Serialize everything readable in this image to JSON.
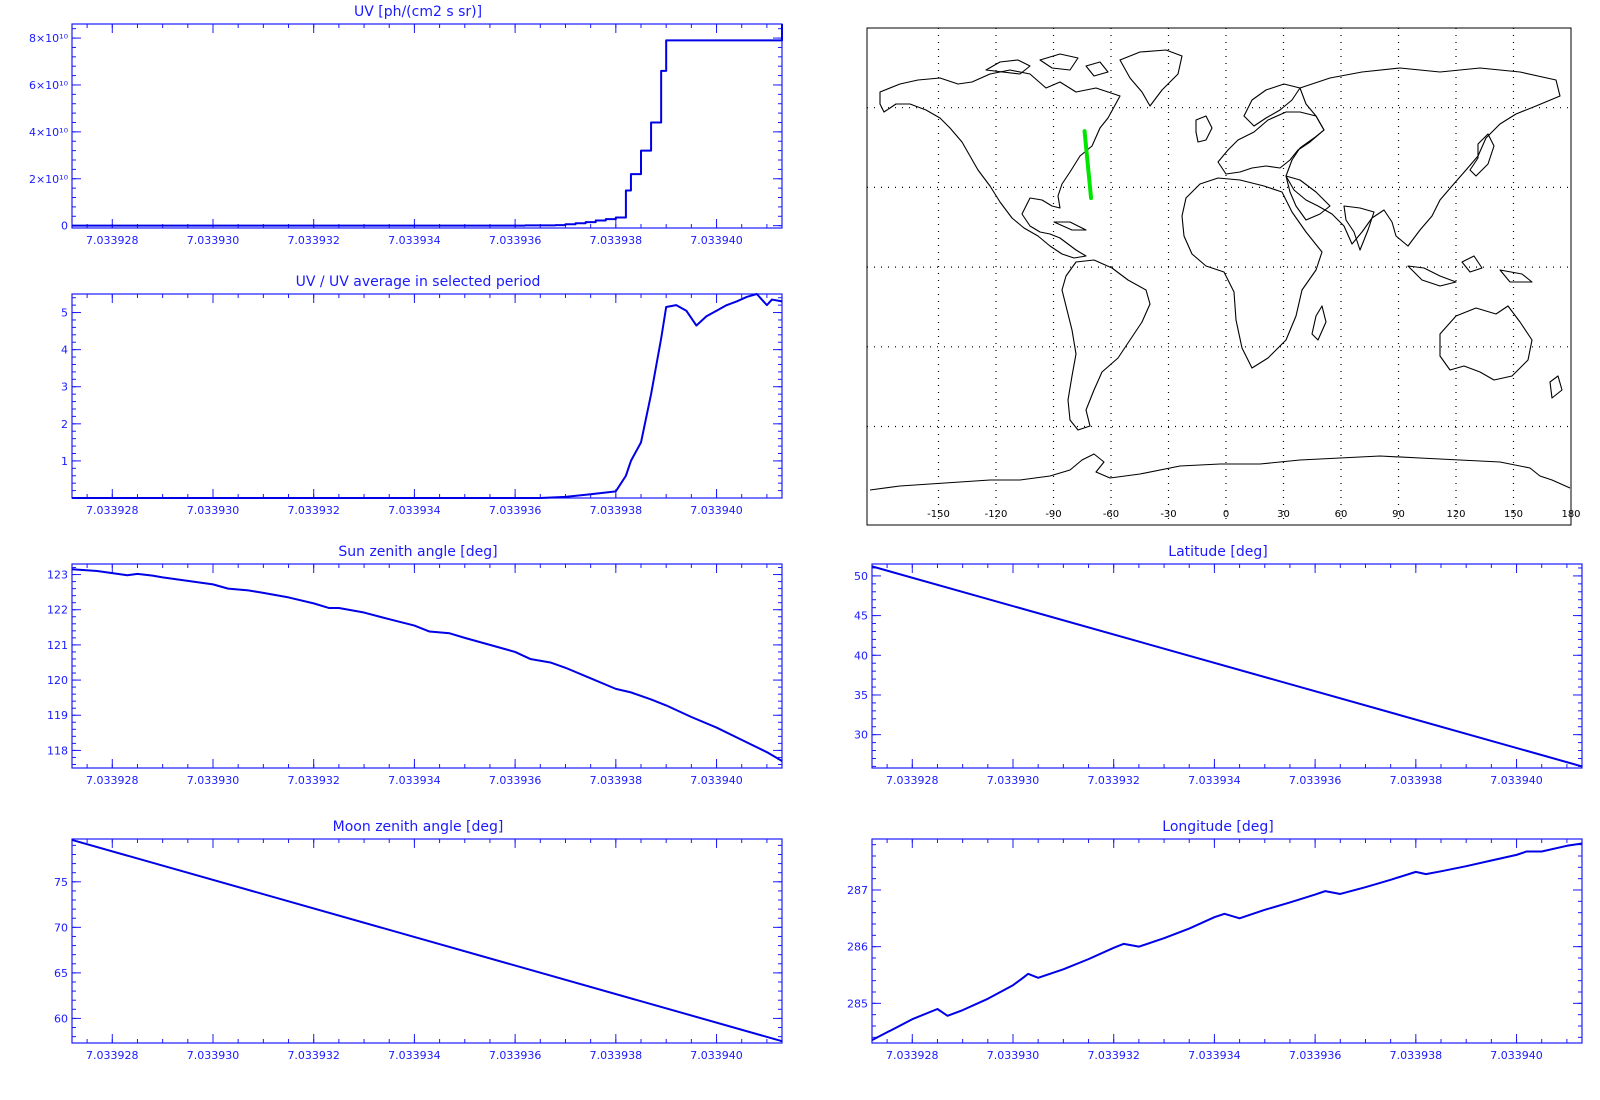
{
  "colors": {
    "plot": "#0000e6",
    "axis": "#1a1aff",
    "track": "#00e600",
    "coast": "#000000",
    "grid": "#000000"
  },
  "x_ticks": [
    "7.033928",
    "7.033930",
    "7.033932",
    "7.033934",
    "7.033936",
    "7.033938",
    "7.033940"
  ],
  "chart_data": [
    {
      "id": "uv",
      "type": "line",
      "title": "UV [ph/(cm2 s sr)]",
      "xlim": [
        7.0339272,
        7.0339413
      ],
      "ylim": [
        -1000000000.0,
        86000000000.0
      ],
      "step": true,
      "yticks": [
        0,
        20000000000.0,
        40000000000.0,
        60000000000.0,
        80000000000.0
      ],
      "ytick_labels": [
        "0",
        "2×10¹⁰",
        "4×10¹⁰",
        "6×10¹⁰",
        "8×10¹⁰"
      ],
      "x": [
        7.0339272,
        7.033935,
        7.0339362,
        7.0339368,
        7.033937,
        7.0339372,
        7.0339374,
        7.0339376,
        7.0339378,
        7.033938,
        7.0339382,
        7.0339383,
        7.0339385,
        7.0339387,
        7.0339389,
        7.033939,
        7.0339413
      ],
      "y": [
        0,
        0,
        100000000.0,
        200000000.0,
        600000000.0,
        1000000000.0,
        1500000000.0,
        2200000000.0,
        2800000000.0,
        3500000000.0,
        15000000000.0,
        22000000000.0,
        32000000000.0,
        44000000000.0,
        66000000000.0,
        79000000000.0,
        86000000000.0
      ]
    },
    {
      "id": "ratio",
      "type": "line",
      "title": "UV / UV average in selected period",
      "xlim": [
        7.0339272,
        7.0339413
      ],
      "ylim": [
        0,
        5.5
      ],
      "yticks": [
        1,
        2,
        3,
        4,
        5
      ],
      "ytick_labels": [
        "1",
        "2",
        "3",
        "4",
        "5"
      ],
      "x": [
        7.0339272,
        7.0339365,
        7.033937,
        7.0339375,
        7.033938,
        7.0339382,
        7.0339383,
        7.0339385,
        7.0339387,
        7.0339389,
        7.033939,
        7.0339392,
        7.0339394,
        7.0339396,
        7.0339398,
        7.03394,
        7.0339402,
        7.0339404,
        7.0339406,
        7.0339408,
        7.033941,
        7.0339411,
        7.0339413
      ],
      "y": [
        0,
        0,
        0.03,
        0.1,
        0.18,
        0.6,
        1.0,
        1.5,
        2.8,
        4.3,
        5.15,
        5.2,
        5.05,
        4.65,
        4.9,
        5.05,
        5.2,
        5.3,
        5.42,
        5.5,
        5.2,
        5.35,
        5.3
      ]
    },
    {
      "id": "sza",
      "type": "line",
      "title": "Sun zenith angle [deg]",
      "xlim": [
        7.0339272,
        7.0339413
      ],
      "ylim": [
        117.5,
        123.3
      ],
      "yticks": [
        118,
        119,
        120,
        121,
        122,
        123
      ],
      "ytick_labels": [
        "118",
        "119",
        "120",
        "121",
        "122",
        "123"
      ],
      "x": [
        7.0339272,
        7.0339277,
        7.0339283,
        7.0339285,
        7.0339288,
        7.033929,
        7.0339295,
        7.03393,
        7.0339303,
        7.0339307,
        7.033931,
        7.0339315,
        7.033932,
        7.0339323,
        7.0339325,
        7.033933,
        7.0339335,
        7.033934,
        7.0339343,
        7.0339347,
        7.033935,
        7.0339355,
        7.033936,
        7.0339363,
        7.0339367,
        7.033937,
        7.0339375,
        7.033938,
        7.0339383,
        7.0339387,
        7.033939,
        7.0339395,
        7.03394,
        7.0339405,
        7.033941,
        7.0339413
      ],
      "y": [
        123.15,
        123.1,
        122.98,
        123.02,
        122.97,
        122.92,
        122.82,
        122.72,
        122.6,
        122.55,
        122.48,
        122.35,
        122.18,
        122.05,
        122.05,
        121.92,
        121.73,
        121.55,
        121.38,
        121.33,
        121.2,
        121.0,
        120.8,
        120.6,
        120.5,
        120.35,
        120.05,
        119.75,
        119.65,
        119.45,
        119.28,
        118.95,
        118.65,
        118.3,
        117.95,
        117.7
      ]
    },
    {
      "id": "lat",
      "type": "line",
      "title": "Latitude [deg]",
      "xlim": [
        7.0339272,
        7.0339413
      ],
      "ylim": [
        25.8,
        51.5
      ],
      "yticks": [
        30,
        35,
        40,
        45,
        50
      ],
      "ytick_labels": [
        "30",
        "35",
        "40",
        "45",
        "50"
      ],
      "x": [
        7.0339272,
        7.0339413
      ],
      "y": [
        51.2,
        26.0
      ]
    },
    {
      "id": "mza",
      "type": "line",
      "title": "Moon zenith angle [deg]",
      "xlim": [
        7.0339272,
        7.0339413
      ],
      "ylim": [
        57.3,
        79.7
      ],
      "yticks": [
        60,
        65,
        70,
        75
      ],
      "ytick_labels": [
        "60",
        "65",
        "70",
        "75"
      ],
      "x": [
        7.0339272,
        7.0339413
      ],
      "y": [
        79.6,
        57.5
      ]
    },
    {
      "id": "lon",
      "type": "line",
      "title": "Longitude [deg]",
      "xlim": [
        7.0339272,
        7.0339413
      ],
      "ylim": [
        284.3,
        287.9
      ],
      "yticks": [
        285,
        286,
        287
      ],
      "ytick_labels": [
        "285",
        "286",
        "287"
      ],
      "x": [
        7.0339272,
        7.033928,
        7.0339285,
        7.0339287,
        7.033929,
        7.0339295,
        7.03393,
        7.0339302,
        7.0339303,
        7.0339305,
        7.033931,
        7.0339315,
        7.033932,
        7.0339322,
        7.0339325,
        7.033933,
        7.0339335,
        7.033934,
        7.0339342,
        7.0339345,
        7.033935,
        7.0339355,
        7.033936,
        7.0339362,
        7.0339365,
        7.033937,
        7.0339375,
        7.033938,
        7.0339382,
        7.0339385,
        7.033939,
        7.0339395,
        7.03394,
        7.0339402,
        7.0339405,
        7.033941,
        7.0339413
      ],
      "y": [
        284.35,
        284.72,
        284.9,
        284.78,
        284.88,
        285.08,
        285.32,
        285.45,
        285.52,
        285.45,
        285.6,
        285.78,
        285.98,
        286.05,
        286.0,
        286.15,
        286.32,
        286.52,
        286.58,
        286.5,
        286.65,
        286.78,
        286.92,
        286.98,
        286.93,
        287.05,
        287.18,
        287.32,
        287.28,
        287.33,
        287.42,
        287.52,
        287.62,
        287.68,
        287.68,
        287.78,
        287.82
      ]
    }
  ],
  "map": {
    "lon_labels": [
      "-150",
      "-120",
      "-90",
      "-60",
      "-30",
      "0",
      "30",
      "60",
      "90",
      "120",
      "150",
      "180"
    ],
    "track": [
      [
        -73.8,
        51.2
      ],
      [
        -70.4,
        26.0
      ]
    ]
  }
}
